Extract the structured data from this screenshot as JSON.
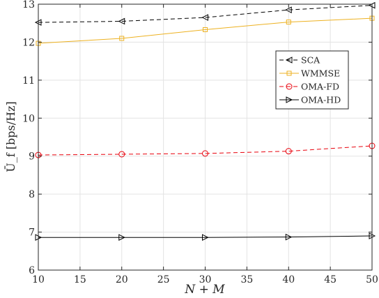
{
  "chart_data": {
    "type": "line",
    "xlabel": "N + M",
    "ylabel": "Ū_f [bps/Hz]",
    "xlim": [
      10,
      50
    ],
    "ylim": [
      6,
      13
    ],
    "xticks": [
      10,
      15,
      20,
      25,
      30,
      35,
      40,
      45,
      50
    ],
    "yticks": [
      6,
      7,
      8,
      9,
      10,
      11,
      12,
      13
    ],
    "grid": true,
    "legend_position": "right, upper middle",
    "x": [
      10,
      20,
      30,
      40,
      50
    ],
    "series": [
      {
        "name": "SCA",
        "values": [
          12.52,
          12.55,
          12.65,
          12.85,
          12.97
        ],
        "color": "#000000",
        "line": "dashed",
        "marker": "triangle-left"
      },
      {
        "name": "WMMSE",
        "values": [
          11.97,
          12.1,
          12.33,
          12.53,
          12.63
        ],
        "color": "#EDB120",
        "line": "solid",
        "marker": "square"
      },
      {
        "name": "OMA-FD",
        "values": [
          9.03,
          9.05,
          9.07,
          9.13,
          9.27
        ],
        "color": "#E8000B",
        "line": "dashed",
        "marker": "circle"
      },
      {
        "name": "OMA-HD",
        "values": [
          6.86,
          6.86,
          6.86,
          6.87,
          6.9
        ],
        "color": "#000000",
        "line": "solid",
        "marker": "triangle-right"
      }
    ]
  }
}
